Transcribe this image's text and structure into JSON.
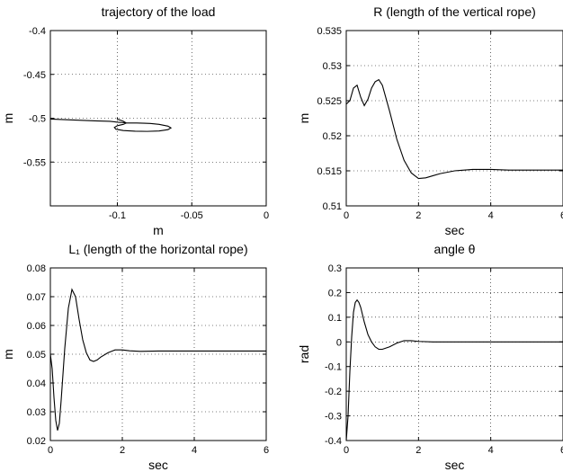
{
  "chart_data": [
    {
      "type": "line",
      "title": "trajectory of the load",
      "xlabel": "m",
      "ylabel": "m",
      "xlim": [
        -0.145,
        0
      ],
      "ylim": [
        -0.6,
        -0.4
      ],
      "xticks": [
        -0.1,
        -0.05,
        0
      ],
      "xtick_labels": [
        "-0.1",
        "-0.05",
        "0"
      ],
      "yticks": [
        -0.4,
        -0.45,
        -0.5,
        -0.55
      ],
      "ytick_labels": [
        "-0.4",
        "-0.45",
        "-0.5",
        "-0.55"
      ],
      "grid": true,
      "series": [
        {
          "x": [
            -0.145,
            -0.13,
            -0.115,
            -0.105,
            -0.1,
            -0.096,
            -0.092,
            -0.087,
            -0.082,
            -0.078,
            -0.072,
            -0.066,
            -0.064,
            -0.066,
            -0.072,
            -0.08,
            -0.088,
            -0.096,
            -0.101,
            -0.102,
            -0.1,
            -0.096,
            -0.094,
            -0.096,
            -0.1,
            -0.1,
            -0.1
          ],
          "y": [
            -0.501,
            -0.502,
            -0.503,
            -0.5035,
            -0.5045,
            -0.505,
            -0.5055,
            -0.5055,
            -0.5057,
            -0.506,
            -0.507,
            -0.509,
            -0.511,
            -0.513,
            -0.5145,
            -0.515,
            -0.5148,
            -0.514,
            -0.5125,
            -0.5105,
            -0.5085,
            -0.507,
            -0.5055,
            -0.5035,
            -0.501,
            -0.4995,
            -0.5
          ]
        }
      ]
    },
    {
      "type": "line",
      "title": "R (length of the vertical rope)",
      "xlabel": "sec",
      "ylabel": "m",
      "xlim": [
        0,
        6
      ],
      "ylim": [
        0.51,
        0.535
      ],
      "xticks": [
        0,
        2,
        4,
        6
      ],
      "xtick_labels": [
        "0",
        "2",
        "4",
        "6"
      ],
      "yticks": [
        0.51,
        0.515,
        0.52,
        0.525,
        0.53,
        0.535
      ],
      "ytick_labels": [
        "0.51",
        "0.515",
        "0.52",
        "0.525",
        "0.53",
        "0.535"
      ],
      "grid": true,
      "series": [
        {
          "x": [
            0,
            0.1,
            0.2,
            0.3,
            0.4,
            0.5,
            0.6,
            0.7,
            0.8,
            0.9,
            1.0,
            1.2,
            1.4,
            1.6,
            1.8,
            2.0,
            2.2,
            2.4,
            2.6,
            3.0,
            3.5,
            4.0,
            4.5,
            5.0,
            5.5,
            6.0
          ],
          "y": [
            0.5245,
            0.525,
            0.5268,
            0.5272,
            0.5255,
            0.5243,
            0.5252,
            0.5268,
            0.5277,
            0.528,
            0.5272,
            0.5235,
            0.5195,
            0.5165,
            0.5147,
            0.5139,
            0.514,
            0.5143,
            0.5146,
            0.515,
            0.5152,
            0.5152,
            0.5151,
            0.5151,
            0.5151,
            0.5151
          ]
        }
      ]
    },
    {
      "type": "line",
      "title": "L₁ (length of the horizontal rope)",
      "xlabel": "sec",
      "ylabel": "m",
      "xlim": [
        0,
        6
      ],
      "ylim": [
        0.02,
        0.08
      ],
      "xticks": [
        0,
        2,
        4,
        6
      ],
      "xtick_labels": [
        "0",
        "2",
        "4",
        "6"
      ],
      "yticks": [
        0.02,
        0.03,
        0.04,
        0.05,
        0.06,
        0.07,
        0.08
      ],
      "ytick_labels": [
        "0.02",
        "0.03",
        "0.04",
        "0.05",
        "0.06",
        "0.07",
        "0.08"
      ],
      "grid": true,
      "series": [
        {
          "x": [
            0,
            0.05,
            0.1,
            0.15,
            0.2,
            0.25,
            0.3,
            0.4,
            0.5,
            0.6,
            0.7,
            0.8,
            0.9,
            1.0,
            1.1,
            1.2,
            1.3,
            1.4,
            1.6,
            1.8,
            2.0,
            2.2,
            2.5,
            3.0,
            4.0,
            5.0,
            6.0
          ],
          "y": [
            0.05,
            0.045,
            0.035,
            0.027,
            0.0235,
            0.026,
            0.034,
            0.052,
            0.066,
            0.0725,
            0.07,
            0.062,
            0.055,
            0.0505,
            0.048,
            0.0475,
            0.048,
            0.049,
            0.0505,
            0.0515,
            0.0515,
            0.0512,
            0.051,
            0.0511,
            0.0511,
            0.0511,
            0.0511
          ]
        }
      ]
    },
    {
      "type": "line",
      "title": "angle θ",
      "xlabel": "sec",
      "ylabel": "rad",
      "xlim": [
        0,
        6
      ],
      "ylim": [
        -0.4,
        0.3
      ],
      "xticks": [
        0,
        2,
        4,
        6
      ],
      "xtick_labels": [
        "0",
        "2",
        "4",
        "6"
      ],
      "yticks": [
        -0.4,
        -0.3,
        -0.2,
        -0.1,
        0,
        0.1,
        0.2,
        0.3
      ],
      "ytick_labels": [
        "-0.4",
        "-0.3",
        "-0.2",
        "-0.1",
        "0",
        "0.1",
        "0.2",
        "0.3"
      ],
      "grid": true,
      "series": [
        {
          "x": [
            0,
            0.05,
            0.1,
            0.15,
            0.2,
            0.25,
            0.3,
            0.35,
            0.4,
            0.5,
            0.6,
            0.7,
            0.8,
            0.9,
            1.0,
            1.1,
            1.2,
            1.4,
            1.6,
            1.8,
            2.0,
            2.4,
            3.0,
            4.0,
            5.0,
            6.0
          ],
          "y": [
            -0.4,
            -0.3,
            -0.12,
            0.02,
            0.12,
            0.16,
            0.17,
            0.16,
            0.14,
            0.08,
            0.03,
            0.0,
            -0.02,
            -0.03,
            -0.03,
            -0.025,
            -0.02,
            -0.005,
            0.005,
            0.005,
            0.002,
            0.0,
            0.0,
            0.0,
            0.0,
            0.0
          ]
        }
      ]
    }
  ]
}
